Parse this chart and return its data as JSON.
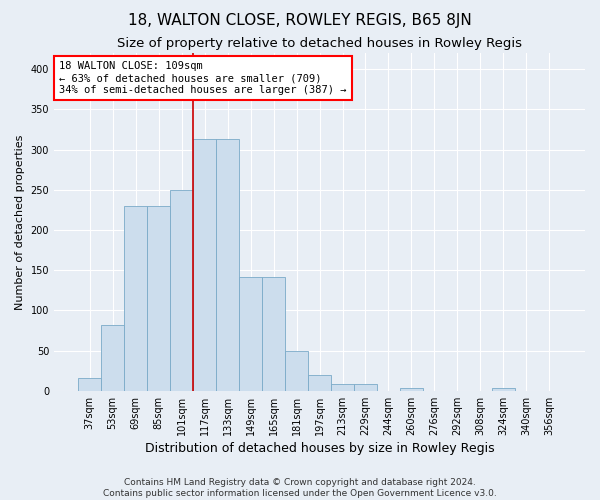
{
  "title": "18, WALTON CLOSE, ROWLEY REGIS, B65 8JN",
  "subtitle": "Size of property relative to detached houses in Rowley Regis",
  "xlabel": "Distribution of detached houses by size in Rowley Regis",
  "ylabel": "Number of detached properties",
  "footer_line1": "Contains HM Land Registry data © Crown copyright and database right 2024.",
  "footer_line2": "Contains public sector information licensed under the Open Government Licence v3.0.",
  "bar_labels": [
    "37sqm",
    "53sqm",
    "69sqm",
    "85sqm",
    "101sqm",
    "117sqm",
    "133sqm",
    "149sqm",
    "165sqm",
    "181sqm",
    "197sqm",
    "213sqm",
    "229sqm",
    "244sqm",
    "260sqm",
    "276sqm",
    "292sqm",
    "308sqm",
    "324sqm",
    "340sqm",
    "356sqm"
  ],
  "bar_values": [
    16,
    82,
    230,
    230,
    250,
    313,
    313,
    142,
    142,
    50,
    20,
    9,
    9,
    0,
    4,
    0,
    0,
    0,
    3,
    0,
    0
  ],
  "bar_color": "#ccdded",
  "bar_edge_color": "#7aaac8",
  "vline_color": "#cc0000",
  "vline_x_bin": 5,
  "annotation_box_text": "18 WALTON CLOSE: 109sqm\n← 63% of detached houses are smaller (709)\n34% of semi-detached houses are larger (387) →",
  "ylim": [
    0,
    420
  ],
  "yticks": [
    0,
    50,
    100,
    150,
    200,
    250,
    300,
    350,
    400
  ],
  "bg_color": "#e8eef5",
  "plot_bg_color": "#e8eef5",
  "grid_color": "white",
  "title_fontsize": 11,
  "subtitle_fontsize": 9.5,
  "xlabel_fontsize": 9,
  "ylabel_fontsize": 8,
  "tick_fontsize": 7,
  "footer_fontsize": 6.5,
  "annotation_fontsize": 7.5
}
